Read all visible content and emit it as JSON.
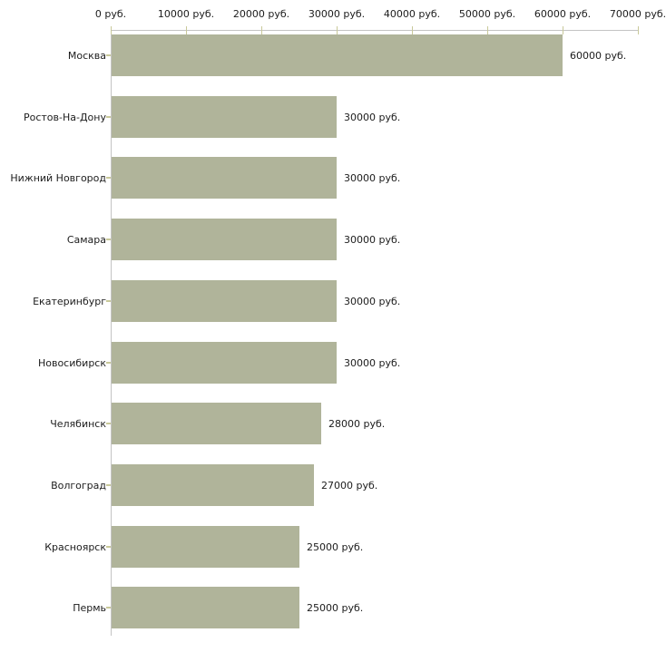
{
  "chart_data": {
    "type": "bar",
    "orientation": "horizontal",
    "title": "",
    "xlabel": "",
    "ylabel": "",
    "xlim": [
      0,
      70000
    ],
    "x_tick_values": [
      0,
      10000,
      20000,
      30000,
      40000,
      50000,
      60000,
      70000
    ],
    "x_tick_labels": [
      "0 руб.",
      "10000 руб.",
      "20000 руб.",
      "30000 руб.",
      "40000 руб.",
      "50000 руб.",
      "60000 руб.",
      "70000 руб."
    ],
    "categories": [
      "Москва",
      "Ростов-На-Дону",
      "Нижний Новгород",
      "Самара",
      "Екатеринбург",
      "Новосибирск",
      "Челябинск",
      "Волгоград",
      "Красноярск",
      "Пермь"
    ],
    "values": [
      60000,
      30000,
      30000,
      30000,
      30000,
      30000,
      28000,
      27000,
      25000,
      25000
    ],
    "bar_value_labels": [
      "60000 руб.",
      "30000 руб.",
      "30000 руб.",
      "30000 руб.",
      "30000 руб.",
      "30000 руб.",
      "28000 руб.",
      "27000 руб.",
      "25000 руб.",
      "25000 руб."
    ],
    "grid": false,
    "legend": false,
    "colors": {
      "bar": "#b0b49a",
      "axis_line": "#c4c4c4",
      "tick_mark": "#c9c99a",
      "text": "#1c1c1c",
      "background": "#ffffff"
    }
  }
}
